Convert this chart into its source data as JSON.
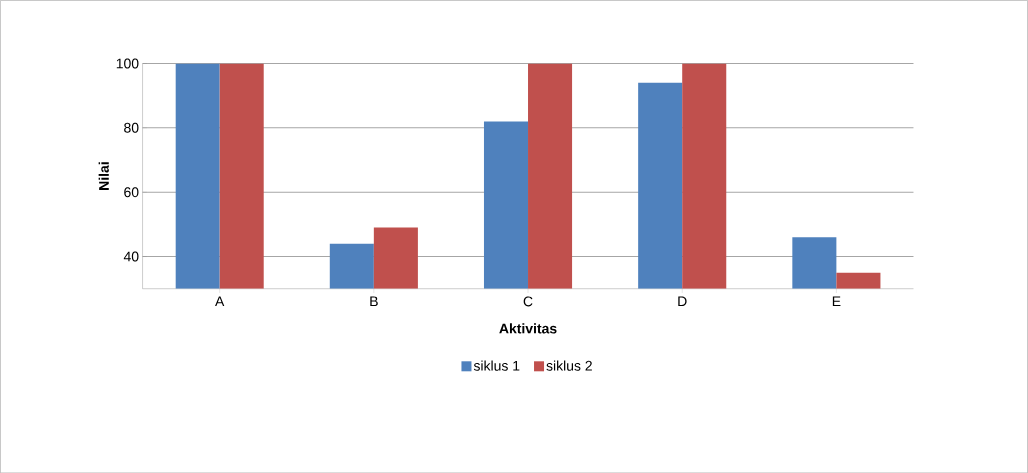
{
  "chart_data": {
    "type": "bar",
    "xlabel": "Aktivitas",
    "ylabel": "Nilai",
    "categories": [
      "A",
      "B",
      "C",
      "D",
      "E"
    ],
    "series": [
      {
        "name": "siklus 1",
        "color": "#4f81bd",
        "values": [
          100,
          44,
          82,
          94,
          46
        ]
      },
      {
        "name": "siklus 2",
        "color": "#c0504d",
        "values": [
          100,
          49,
          100,
          100,
          35
        ]
      }
    ],
    "ylim": [
      30,
      100
    ],
    "yticks": [
      40,
      60,
      80,
      100
    ],
    "grid": "y",
    "legend": "bottom"
  }
}
